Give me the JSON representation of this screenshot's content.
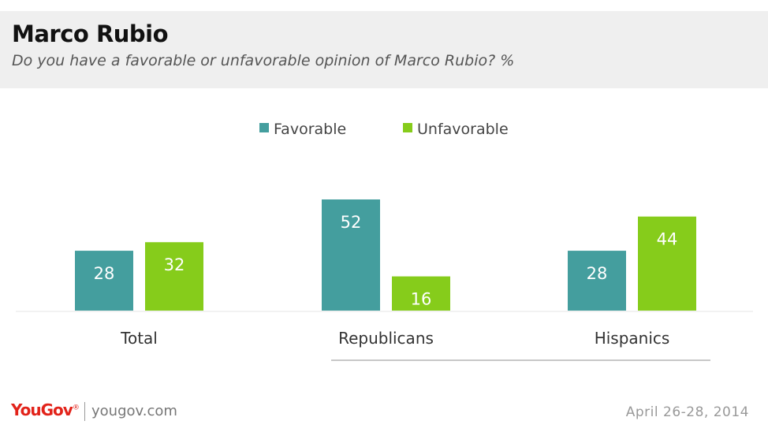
{
  "header": {
    "title": "Marco Rubio",
    "subtitle": "Do you have a favorable or unfavorable opinion of Marco Rubio? %"
  },
  "chart_data": {
    "type": "bar",
    "categories": [
      "Total",
      "Republicans",
      "Hispanics"
    ],
    "series": [
      {
        "name": "Favorable",
        "values": [
          28,
          52,
          28
        ],
        "color": "#449e9e"
      },
      {
        "name": "Unfavorable",
        "values": [
          32,
          16,
          44
        ],
        "color": "#86cc1b"
      }
    ],
    "ylim": [
      0,
      52
    ],
    "legend_position": "top-center",
    "grid": false
  },
  "footer": {
    "brand": "YouGov",
    "site": "yougov.com",
    "date": "April 26-28, 2014"
  }
}
